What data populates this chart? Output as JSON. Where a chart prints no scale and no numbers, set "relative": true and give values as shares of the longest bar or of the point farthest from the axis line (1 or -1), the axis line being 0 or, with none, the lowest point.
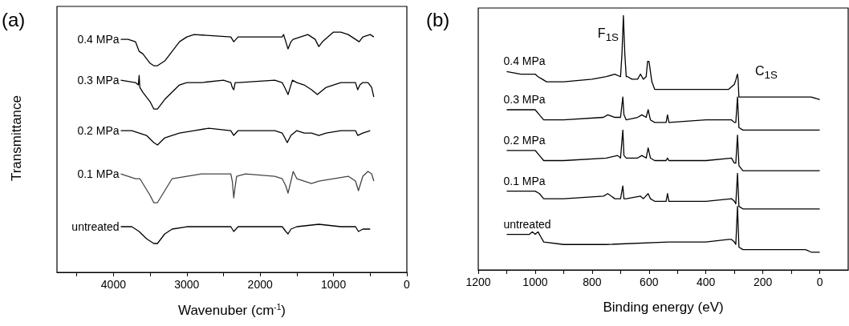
{
  "chart_data": [
    {
      "type": "line",
      "title": "(a)",
      "xlabel": "Wavenuber (cm$^{-1}$)",
      "ylabel": "Transmittance",
      "relative": true,
      "xlim": [
        4770,
        0
      ],
      "xticks": [
        {
          "value": 4500,
          "label": null
        },
        4000,
        {
          "value": 3500,
          "label": null
        },
        3000,
        {
          "value": 2500,
          "label": null
        },
        2000,
        {
          "value": 1500,
          "label": null
        },
        1000,
        {
          "value": 500,
          "label": null
        },
        0
      ],
      "series": [
        {
          "name": "0.4 MPa",
          "color": "#000000",
          "x": [
            3900,
            3800,
            3700,
            3650,
            3600,
            3500,
            3450,
            3400,
            3300,
            3200,
            3100,
            3000,
            2900,
            2400,
            2360,
            2300,
            2000,
            1700,
            1680,
            1620,
            1580,
            1550,
            1450,
            1350,
            1250,
            1200,
            1150,
            1000,
            900,
            800,
            700,
            650,
            600,
            500,
            450
          ],
          "values": [
            0.97,
            0.97,
            0.96,
            0.92,
            0.91,
            0.87,
            0.86,
            0.86,
            0.88,
            0.92,
            0.96,
            0.98,
            0.99,
            0.98,
            0.96,
            0.98,
            0.98,
            0.98,
            0.99,
            0.93,
            0.96,
            0.97,
            0.98,
            0.99,
            0.97,
            0.94,
            0.96,
            1.0,
            1.0,
            0.99,
            0.97,
            0.96,
            0.98,
            0.99,
            0.98
          ]
        },
        {
          "name": "0.3 MPa",
          "color": "#000000",
          "x": [
            3900,
            3700,
            3660,
            3650,
            3640,
            3600,
            3550,
            3500,
            3450,
            3400,
            3300,
            3200,
            3100,
            3000,
            2800,
            2500,
            2400,
            2380,
            2360,
            2340,
            2300,
            1800,
            1700,
            1650,
            1620,
            1580,
            1560,
            1500,
            1400,
            1300,
            1220,
            1100,
            900,
            700,
            670,
            640,
            600,
            530,
            480,
            450
          ],
          "values": [
            0.8,
            0.79,
            0.78,
            0.82,
            0.77,
            0.75,
            0.73,
            0.71,
            0.68,
            0.68,
            0.72,
            0.75,
            0.78,
            0.79,
            0.79,
            0.8,
            0.79,
            0.77,
            0.76,
            0.79,
            0.79,
            0.8,
            0.79,
            0.76,
            0.74,
            0.78,
            0.8,
            0.79,
            0.78,
            0.76,
            0.74,
            0.77,
            0.79,
            0.79,
            0.76,
            0.78,
            0.79,
            0.79,
            0.77,
            0.73
          ]
        },
        {
          "name": "0.2 MPa",
          "color": "#000000",
          "x": [
            3900,
            3750,
            3650,
            3550,
            3450,
            3400,
            3300,
            3100,
            2900,
            2700,
            2400,
            2360,
            2330,
            2300,
            1800,
            1700,
            1630,
            1580,
            1500,
            1400,
            1300,
            1200,
            1100,
            900,
            700,
            670,
            600,
            500
          ],
          "values": [
            0.59,
            0.59,
            0.58,
            0.57,
            0.54,
            0.53,
            0.56,
            0.58,
            0.59,
            0.6,
            0.59,
            0.57,
            0.58,
            0.59,
            0.59,
            0.58,
            0.54,
            0.57,
            0.59,
            0.58,
            0.58,
            0.57,
            0.58,
            0.59,
            0.59,
            0.57,
            0.58,
            0.59
          ]
        },
        {
          "name": "0.1 MPa",
          "color": "#444444",
          "x": [
            3900,
            3700,
            3640,
            3600,
            3500,
            3450,
            3400,
            3300,
            3200,
            3000,
            2800,
            2450,
            2400,
            2380,
            2360,
            2340,
            2320,
            2200,
            1800,
            1700,
            1650,
            1620,
            1580,
            1550,
            1500,
            1400,
            1300,
            1200,
            1000,
            800,
            700,
            660,
            640,
            600,
            530,
            480,
            450
          ],
          "values": [
            0.41,
            0.39,
            0.39,
            0.37,
            0.32,
            0.29,
            0.29,
            0.34,
            0.39,
            0.4,
            0.41,
            0.41,
            0.41,
            0.38,
            0.31,
            0.36,
            0.4,
            0.41,
            0.4,
            0.39,
            0.36,
            0.33,
            0.38,
            0.42,
            0.39,
            0.38,
            0.37,
            0.38,
            0.39,
            0.4,
            0.38,
            0.34,
            0.36,
            0.4,
            0.42,
            0.41,
            0.38
          ]
        },
        {
          "name": "untreated",
          "color": "#000000",
          "x": [
            3900,
            3750,
            3700,
            3650,
            3550,
            3450,
            3400,
            3300,
            3200,
            3000,
            2400,
            2360,
            2330,
            2300,
            2000,
            1700,
            1650,
            1620,
            1580,
            1500,
            1200,
            900,
            700,
            660,
            600,
            500
          ],
          "values": [
            0.19,
            0.19,
            0.18,
            0.17,
            0.14,
            0.12,
            0.12,
            0.16,
            0.18,
            0.19,
            0.19,
            0.17,
            0.18,
            0.19,
            0.19,
            0.19,
            0.17,
            0.16,
            0.18,
            0.19,
            0.2,
            0.19,
            0.19,
            0.17,
            0.18,
            0.18
          ]
        }
      ]
    },
    {
      "type": "line",
      "title": "(b)",
      "xlabel": "Binding energy (eV)",
      "relative": true,
      "xlim": [
        1200,
        -100
      ],
      "xticks": [
        1200,
        {
          "value": 1100,
          "label": null
        },
        1000,
        {
          "value": 900,
          "label": null
        },
        800,
        {
          "value": 700,
          "label": null
        },
        600,
        {
          "value": 500,
          "label": null
        },
        400,
        {
          "value": 300,
          "label": null
        },
        200,
        {
          "value": 100,
          "label": null
        },
        0
      ],
      "annotations": [
        {
          "text": "F$_{1S}$",
          "x": 690,
          "y": 1.0
        },
        {
          "text": "C$_{1S}$",
          "x": 289,
          "y": 0.77
        }
      ],
      "series": [
        {
          "name": "0.4 MPa",
          "color": "#000000",
          "x": [
            1100,
            1050,
            1020,
            1000,
            990,
            975,
            960,
            900,
            800,
            750,
            720,
            700,
            695,
            690,
            685,
            680,
            675,
            660,
            640,
            630,
            620,
            610,
            605,
            600,
            590,
            580,
            500,
            400,
            320,
            300,
            294,
            292,
            289,
            287,
            284,
            270,
            100,
            40,
            30,
            0
          ],
          "values": [
            0.78,
            0.77,
            0.77,
            0.77,
            0.76,
            0.75,
            0.74,
            0.74,
            0.75,
            0.76,
            0.77,
            0.76,
            0.85,
            1.0,
            0.85,
            0.76,
            0.76,
            0.75,
            0.75,
            0.77,
            0.75,
            0.76,
            0.82,
            0.82,
            0.74,
            0.71,
            0.71,
            0.71,
            0.71,
            0.73,
            0.75,
            0.76,
            0.77,
            0.75,
            0.68,
            0.68,
            0.68,
            0.68,
            0.68,
            0.67
          ]
        },
        {
          "name": "0.3 MPa",
          "color": "#000000",
          "x": [
            1100,
            1020,
            1000,
            985,
            970,
            900,
            760,
            745,
            720,
            700,
            692,
            688,
            680,
            640,
            625,
            610,
            603,
            595,
            580,
            540,
            535,
            530,
            400,
            310,
            300,
            295,
            289,
            284,
            270,
            0
          ],
          "values": [
            0.63,
            0.63,
            0.63,
            0.61,
            0.59,
            0.59,
            0.6,
            0.61,
            0.6,
            0.6,
            0.68,
            0.61,
            0.59,
            0.6,
            0.61,
            0.6,
            0.63,
            0.59,
            0.58,
            0.58,
            0.61,
            0.58,
            0.59,
            0.59,
            0.58,
            0.58,
            0.68,
            0.56,
            0.55,
            0.55
          ]
        },
        {
          "name": "0.2 MPa",
          "color": "#000000",
          "x": [
            1100,
            1020,
            1000,
            985,
            970,
            900,
            750,
            710,
            700,
            692,
            688,
            680,
            640,
            625,
            610,
            603,
            595,
            580,
            540,
            535,
            530,
            400,
            310,
            300,
            295,
            289,
            284,
            270,
            0
          ],
          "values": [
            0.47,
            0.47,
            0.47,
            0.45,
            0.43,
            0.43,
            0.44,
            0.45,
            0.44,
            0.55,
            0.45,
            0.44,
            0.44,
            0.45,
            0.44,
            0.48,
            0.44,
            0.43,
            0.43,
            0.44,
            0.43,
            0.43,
            0.44,
            0.42,
            0.42,
            0.53,
            0.41,
            0.39,
            0.39
          ]
        },
        {
          "name": "0.1 MPa",
          "color": "#000000",
          "x": [
            1100,
            1020,
            1000,
            985,
            970,
            900,
            760,
            745,
            720,
            700,
            692,
            688,
            680,
            630,
            620,
            603,
            595,
            580,
            540,
            535,
            530,
            400,
            310,
            300,
            295,
            289,
            284,
            270,
            0
          ],
          "values": [
            0.31,
            0.31,
            0.31,
            0.3,
            0.28,
            0.28,
            0.29,
            0.3,
            0.28,
            0.28,
            0.33,
            0.28,
            0.28,
            0.29,
            0.28,
            0.3,
            0.28,
            0.27,
            0.27,
            0.3,
            0.27,
            0.27,
            0.28,
            0.27,
            0.26,
            0.38,
            0.25,
            0.24,
            0.24
          ]
        },
        {
          "name": "untreated",
          "color": "#000000",
          "x": [
            1100,
            1020,
            1010,
            1000,
            990,
            980,
            970,
            900,
            750,
            530,
            400,
            320,
            310,
            300,
            295,
            289,
            284,
            270,
            100,
            50,
            30,
            0
          ],
          "values": [
            0.14,
            0.14,
            0.15,
            0.14,
            0.15,
            0.13,
            0.11,
            0.1,
            0.1,
            0.11,
            0.11,
            0.12,
            0.12,
            0.11,
            0.1,
            0.25,
            0.09,
            0.08,
            0.08,
            0.08,
            0.07,
            0.07
          ]
        }
      ]
    }
  ]
}
